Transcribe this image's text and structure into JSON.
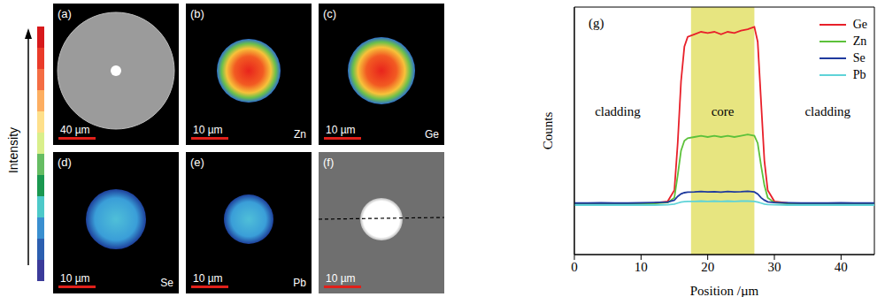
{
  "figure": {
    "colorbar_label": "Intensity",
    "panels": [
      {
        "label": "(a)",
        "scale_bar": "40 µm"
      },
      {
        "label": "(b)",
        "scale_bar": "10 µm",
        "element": "Zn"
      },
      {
        "label": "(c)",
        "scale_bar": "10 µm",
        "element": "Ge"
      },
      {
        "label": "(d)",
        "scale_bar": "10 µm",
        "element": "Se"
      },
      {
        "label": "(e)",
        "scale_bar": "10 µm",
        "element": "Pb"
      },
      {
        "label": "(f)",
        "scale_bar": "10 µm"
      }
    ]
  },
  "chart_data": {
    "type": "line",
    "panel_label": "(g)",
    "x_label": "Position /µm",
    "y_label": "Counts",
    "xlim": [
      0,
      45
    ],
    "xticks": [
      0,
      10,
      20,
      30,
      40
    ],
    "ylim": [
      0,
      100
    ],
    "tick_labels": "x",
    "grid": false,
    "legend": "upper right",
    "core_region": [
      17.5,
      27
    ],
    "annotations": [
      {
        "text": "cladding",
        "x": 6.5,
        "y": 58
      },
      {
        "text": "core",
        "x": 22.25,
        "y": 58
      },
      {
        "text": "cladding",
        "x": 38,
        "y": 58
      }
    ],
    "x": [
      0,
      2,
      4,
      6,
      8,
      10,
      12,
      14,
      15,
      15.5,
      16,
      16.5,
      17,
      18,
      19,
      20,
      21,
      22,
      23,
      24,
      25,
      26,
      27,
      27.5,
      28,
      28.5,
      29,
      30,
      32,
      34,
      36,
      38,
      40,
      42,
      44,
      45
    ],
    "series": [
      {
        "name": "Ge",
        "color": "#e8202a",
        "values": [
          20.5,
          20.6,
          20.5,
          20.4,
          20.5,
          20.6,
          20.8,
          21.5,
          26,
          45,
          70,
          84,
          88,
          89,
          90,
          89.5,
          90,
          89,
          90,
          89.5,
          90.5,
          91,
          92,
          86,
          62,
          38,
          26,
          21.5,
          20.8,
          20.6,
          20.5,
          20.4,
          20.5,
          20.6,
          20.5,
          20.5
        ]
      },
      {
        "name": "Zn",
        "color": "#5cc13a",
        "values": [
          20.5,
          20.5,
          20.6,
          20.5,
          20.5,
          20.6,
          20.7,
          21,
          23,
          32,
          42,
          46,
          47,
          47.5,
          48,
          47.5,
          48,
          47.5,
          48,
          47.5,
          48,
          48.5,
          48,
          45,
          36,
          28,
          23,
          21,
          20.7,
          20.6,
          20.5,
          20.5,
          20.6,
          20.5,
          20.5,
          20.5
        ]
      },
      {
        "name": "Se",
        "color": "#1f3a9e",
        "values": [
          20.8,
          20.8,
          20.9,
          20.8,
          20.8,
          20.9,
          21,
          21.2,
          22,
          23.5,
          24.5,
          25,
          25.2,
          25.3,
          25.5,
          25.3,
          25.4,
          25.2,
          25.5,
          25.3,
          25.4,
          25.6,
          25.3,
          24.5,
          23,
          22,
          21.3,
          21,
          20.9,
          20.8,
          20.8,
          20.8,
          20.9,
          20.8,
          20.8,
          20.8
        ]
      },
      {
        "name": "Pb",
        "color": "#5fd3d8",
        "values": [
          20,
          20,
          20,
          20,
          20,
          20,
          20,
          20.1,
          20.4,
          20.8,
          21.2,
          21.4,
          21.5,
          21.5,
          21.6,
          21.5,
          21.6,
          21.5,
          21.6,
          21.5,
          21.6,
          21.6,
          21.5,
          21.2,
          20.8,
          20.4,
          20.2,
          20.1,
          20,
          20,
          20,
          20,
          20,
          20,
          20,
          20
        ]
      }
    ]
  }
}
